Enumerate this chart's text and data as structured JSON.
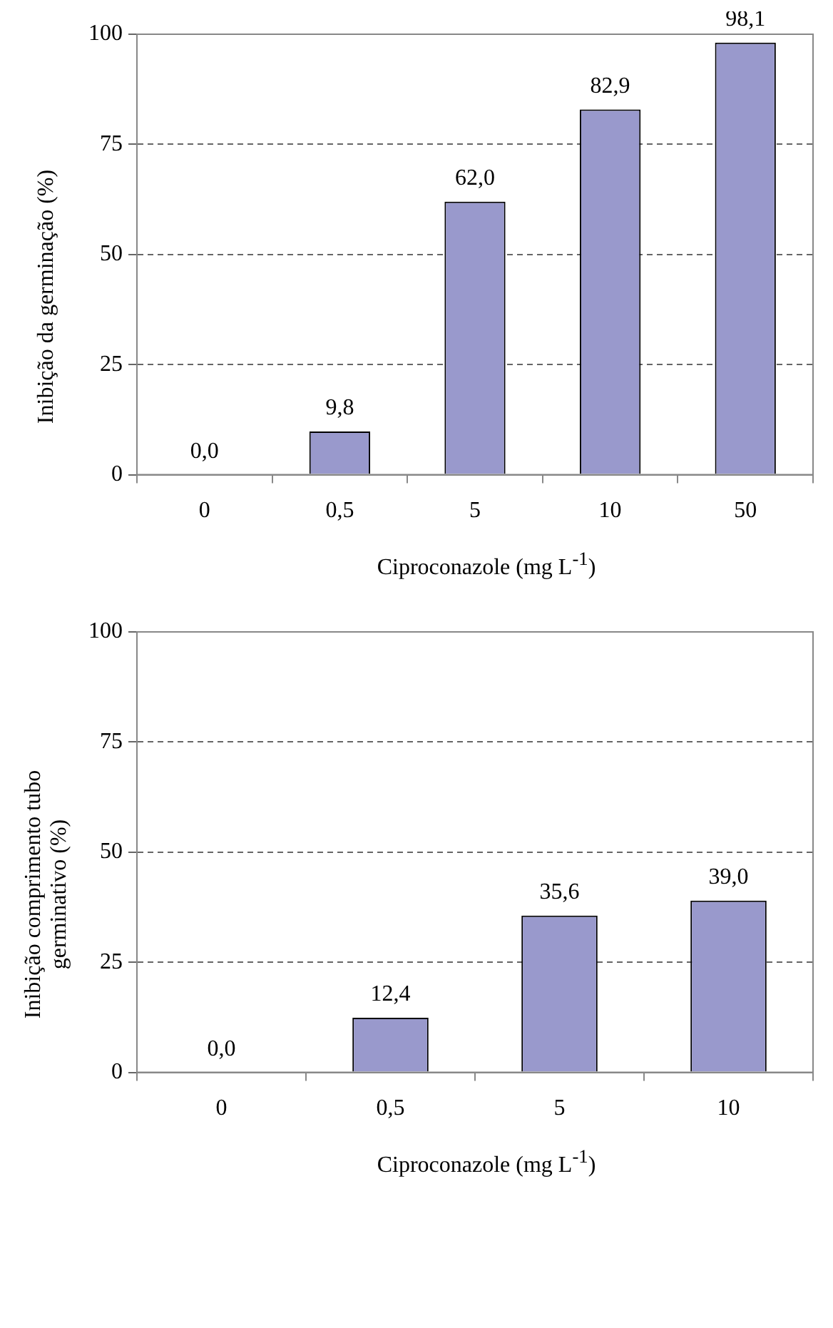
{
  "chart_data": [
    {
      "type": "bar",
      "categories": [
        "0",
        "0,5",
        "5",
        "10",
        "50"
      ],
      "values": [
        0.0,
        9.8,
        62.0,
        82.9,
        98.1
      ],
      "value_labels": [
        "0,0",
        "9,8",
        "62,0",
        "82,9",
        "98,1"
      ],
      "color": "#9999cc",
      "ylim": [
        0,
        100
      ],
      "yticks": [
        0,
        25,
        50,
        75,
        100
      ],
      "grid": "y",
      "xlabel": "Ciproconazole (mg L$^{-1}$)",
      "ylabel": "Inibição da germinação  (%)"
    },
    {
      "type": "bar",
      "categories": [
        "0",
        "0,5",
        "5",
        "10"
      ],
      "values": [
        0.0,
        12.4,
        35.6,
        39.0
      ],
      "value_labels": [
        "0,0",
        "12,4",
        "35,6",
        "39,0"
      ],
      "color": "#9999cc",
      "ylim": [
        0,
        100
      ],
      "yticks": [
        0,
        25,
        50,
        75,
        100
      ],
      "grid": "y",
      "xlabel": "Ciproconazole (mg L$^{-1}$)",
      "ylabel": "Inibição comprimento tubo germinativo (%)"
    }
  ]
}
